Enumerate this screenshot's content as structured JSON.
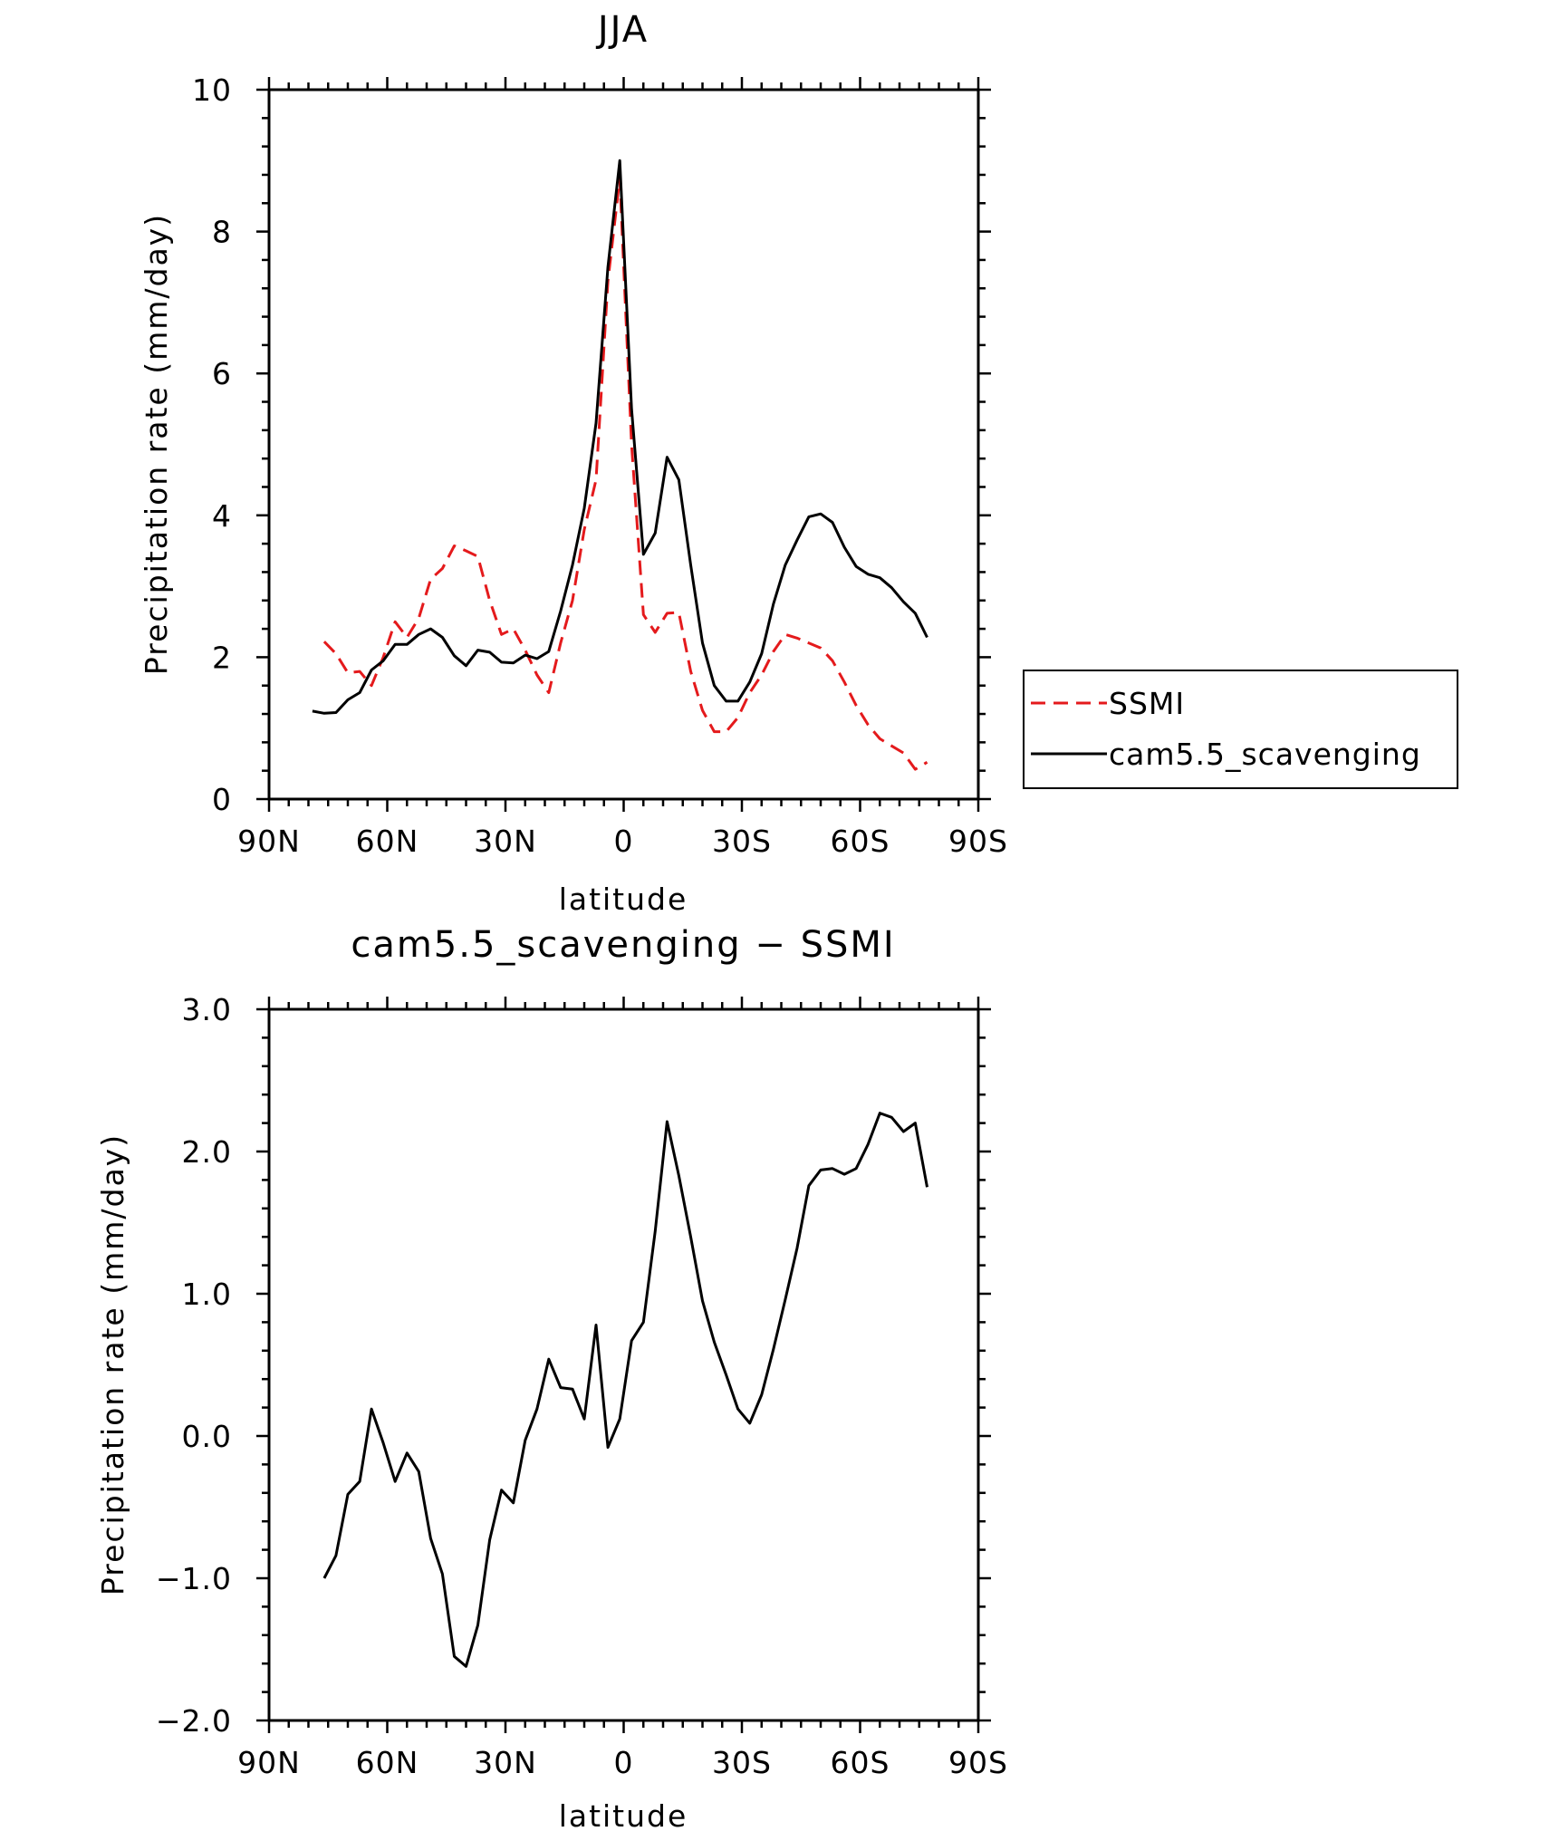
{
  "chart_data": [
    {
      "type": "line",
      "title": "JJA",
      "xlabel": "latitude",
      "ylabel": "Precipitation rate (mm/day)",
      "xlim": [
        90,
        -90
      ],
      "ylim": [
        0,
        10
      ],
      "x_ticks": [
        90,
        60,
        30,
        0,
        -30,
        -60,
        -90
      ],
      "x_tick_labels": [
        "90N",
        "60N",
        "30N",
        "0",
        "30S",
        "60S",
        "90S"
      ],
      "y_ticks": [
        0,
        2,
        4,
        6,
        8,
        10
      ],
      "y_tick_labels": [
        "0",
        "2",
        "4",
        "6",
        "8",
        "10"
      ],
      "legend_position": "right",
      "series": [
        {
          "name": "SSMI",
          "color": "#e41a1c",
          "style": "dashed",
          "points": [
            [
              76,
              2.22
            ],
            [
              73,
              2.05
            ],
            [
              70,
              1.78
            ],
            [
              67,
              1.8
            ],
            [
              64,
              1.6
            ],
            [
              61,
              2.0
            ],
            [
              58,
              2.5
            ],
            [
              55,
              2.28
            ],
            [
              52,
              2.55
            ],
            [
              49,
              3.1
            ],
            [
              46,
              3.25
            ],
            [
              43,
              3.57
            ],
            [
              40,
              3.5
            ],
            [
              37,
              3.42
            ],
            [
              34,
              2.8
            ],
            [
              31,
              2.32
            ],
            [
              28,
              2.4
            ],
            [
              25,
              2.1
            ],
            [
              22,
              1.75
            ],
            [
              19,
              1.5
            ],
            [
              16,
              2.2
            ],
            [
              13,
              2.8
            ],
            [
              10,
              3.8
            ],
            [
              7,
              4.5
            ],
            [
              4,
              7.3
            ],
            [
              1,
              8.75
            ],
            [
              -2,
              5.0
            ],
            [
              -5,
              2.6
            ],
            [
              -8,
              2.35
            ],
            [
              -11,
              2.62
            ],
            [
              -14,
              2.63
            ],
            [
              -17,
              1.8
            ],
            [
              -20,
              1.25
            ],
            [
              -23,
              0.95
            ],
            [
              -26,
              0.95
            ],
            [
              -29,
              1.15
            ],
            [
              -32,
              1.5
            ],
            [
              -35,
              1.75
            ],
            [
              -38,
              2.08
            ],
            [
              -41,
              2.32
            ],
            [
              -44,
              2.27
            ],
            [
              -47,
              2.2
            ],
            [
              -50,
              2.13
            ],
            [
              -53,
              1.95
            ],
            [
              -56,
              1.65
            ],
            [
              -59,
              1.32
            ],
            [
              -62,
              1.05
            ],
            [
              -65,
              0.85
            ],
            [
              -68,
              0.75
            ],
            [
              -71,
              0.65
            ],
            [
              -74,
              0.42
            ],
            [
              -77,
              0.52
            ]
          ]
        },
        {
          "name": "cam5.5_scavenging",
          "color": "#000000",
          "style": "solid",
          "points": [
            [
              79,
              1.24
            ],
            [
              76,
              1.21
            ],
            [
              73,
              1.22
            ],
            [
              70,
              1.4
            ],
            [
              67,
              1.5
            ],
            [
              64,
              1.82
            ],
            [
              61,
              1.95
            ],
            [
              58,
              2.18
            ],
            [
              55,
              2.18
            ],
            [
              52,
              2.32
            ],
            [
              49,
              2.4
            ],
            [
              46,
              2.28
            ],
            [
              43,
              2.02
            ],
            [
              40,
              1.88
            ],
            [
              37,
              2.1
            ],
            [
              34,
              2.07
            ],
            [
              31,
              1.93
            ],
            [
              28,
              1.92
            ],
            [
              25,
              2.03
            ],
            [
              22,
              1.98
            ],
            [
              19,
              2.08
            ],
            [
              16,
              2.65
            ],
            [
              13,
              3.3
            ],
            [
              10,
              4.1
            ],
            [
              7,
              5.3
            ],
            [
              4,
              7.5
            ],
            [
              1,
              9.0
            ],
            [
              -2,
              5.5
            ],
            [
              -5,
              3.45
            ],
            [
              -8,
              3.75
            ],
            [
              -11,
              4.82
            ],
            [
              -14,
              4.5
            ],
            [
              -17,
              3.3
            ],
            [
              -20,
              2.2
            ],
            [
              -23,
              1.6
            ],
            [
              -26,
              1.38
            ],
            [
              -29,
              1.38
            ],
            [
              -32,
              1.65
            ],
            [
              -35,
              2.05
            ],
            [
              -38,
              2.75
            ],
            [
              -41,
              3.3
            ],
            [
              -44,
              3.65
            ],
            [
              -47,
              3.98
            ],
            [
              -50,
              4.02
            ],
            [
              -53,
              3.9
            ],
            [
              -56,
              3.55
            ],
            [
              -59,
              3.28
            ],
            [
              -62,
              3.17
            ],
            [
              -65,
              3.12
            ],
            [
              -68,
              2.98
            ],
            [
              -71,
              2.78
            ],
            [
              -74,
              2.62
            ],
            [
              -77,
              2.28
            ]
          ]
        }
      ]
    },
    {
      "type": "line",
      "title": "cam5.5_scavenging − SSMI",
      "xlabel": "latitude",
      "ylabel": "Precipitation rate (mm/day)",
      "xlim": [
        90,
        -90
      ],
      "ylim": [
        -2.0,
        3.0
      ],
      "x_ticks": [
        90,
        60,
        30,
        0,
        -30,
        -60,
        -90
      ],
      "x_tick_labels": [
        "90N",
        "60N",
        "30N",
        "0",
        "30S",
        "60S",
        "90S"
      ],
      "y_ticks": [
        -2,
        -1,
        0,
        1,
        2,
        3
      ],
      "y_tick_labels": [
        "−2.0",
        "−1.0",
        "0.0",
        "1.0",
        "2.0",
        "3.0"
      ],
      "series": [
        {
          "name": "cam5.5_scavenging − SSMI",
          "color": "#000000",
          "style": "solid",
          "points": [
            [
              76,
              -1.0
            ],
            [
              73,
              -0.84
            ],
            [
              70,
              -0.41
            ],
            [
              67,
              -0.32
            ],
            [
              64,
              0.19
            ],
            [
              61,
              -0.05
            ],
            [
              58,
              -0.32
            ],
            [
              55,
              -0.12
            ],
            [
              52,
              -0.25
            ],
            [
              49,
              -0.72
            ],
            [
              46,
              -0.97
            ],
            [
              43,
              -1.55
            ],
            [
              40,
              -1.62
            ],
            [
              37,
              -1.33
            ],
            [
              34,
              -0.73
            ],
            [
              31,
              -0.38
            ],
            [
              28,
              -0.47
            ],
            [
              25,
              -0.03
            ],
            [
              22,
              0.19
            ],
            [
              19,
              0.54
            ],
            [
              16,
              0.34
            ],
            [
              13,
              0.33
            ],
            [
              10,
              0.12
            ],
            [
              7,
              0.78
            ],
            [
              4,
              -0.08
            ],
            [
              1,
              0.12
            ],
            [
              -2,
              0.67
            ],
            [
              -5,
              0.8
            ],
            [
              -8,
              1.44
            ],
            [
              -11,
              2.21
            ],
            [
              -14,
              1.83
            ],
            [
              -17,
              1.4
            ],
            [
              -20,
              0.95
            ],
            [
              -23,
              0.66
            ],
            [
              -26,
              0.43
            ],
            [
              -29,
              0.19
            ],
            [
              -32,
              0.09
            ],
            [
              -35,
              0.29
            ],
            [
              -38,
              0.61
            ],
            [
              -41,
              0.96
            ],
            [
              -44,
              1.32
            ],
            [
              -47,
              1.76
            ],
            [
              -50,
              1.87
            ],
            [
              -53,
              1.88
            ],
            [
              -56,
              1.84
            ],
            [
              -59,
              1.88
            ],
            [
              -62,
              2.05
            ],
            [
              -65,
              2.27
            ],
            [
              -68,
              2.24
            ],
            [
              -71,
              2.14
            ],
            [
              -74,
              2.2
            ],
            [
              -77,
              1.75
            ]
          ]
        }
      ]
    }
  ]
}
